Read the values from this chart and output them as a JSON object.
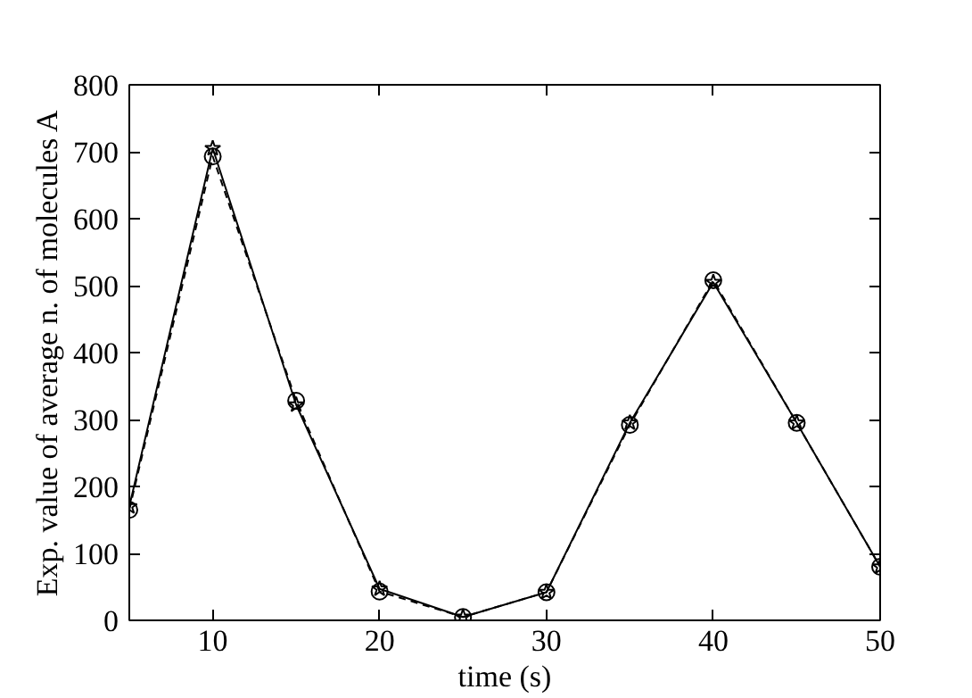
{
  "chart_data": {
    "type": "line",
    "xlabel": "time (s)",
    "ylabel": "Exp. value of average n. of molecules A",
    "x": [
      5,
      10,
      15,
      20,
      25,
      30,
      35,
      40,
      45,
      50
    ],
    "series": [
      {
        "color": "#000000",
        "marker": "star",
        "line_style": "solid",
        "values": [
          170,
          705,
          322,
          47,
          5,
          42,
          295,
          505,
          295,
          80
        ]
      },
      {
        "color": "#000000",
        "marker": "circle",
        "line_style": "dashed",
        "values": [
          165,
          693,
          328,
          43,
          5,
          42,
          292,
          508,
          295,
          80
        ]
      }
    ],
    "xlim": [
      5,
      50
    ],
    "ylim": [
      0,
      800
    ],
    "xticks": [
      10,
      20,
      30,
      40,
      50
    ],
    "yticks": [
      0,
      100,
      200,
      300,
      400,
      500,
      600,
      700,
      800
    ],
    "grid": false
  }
}
